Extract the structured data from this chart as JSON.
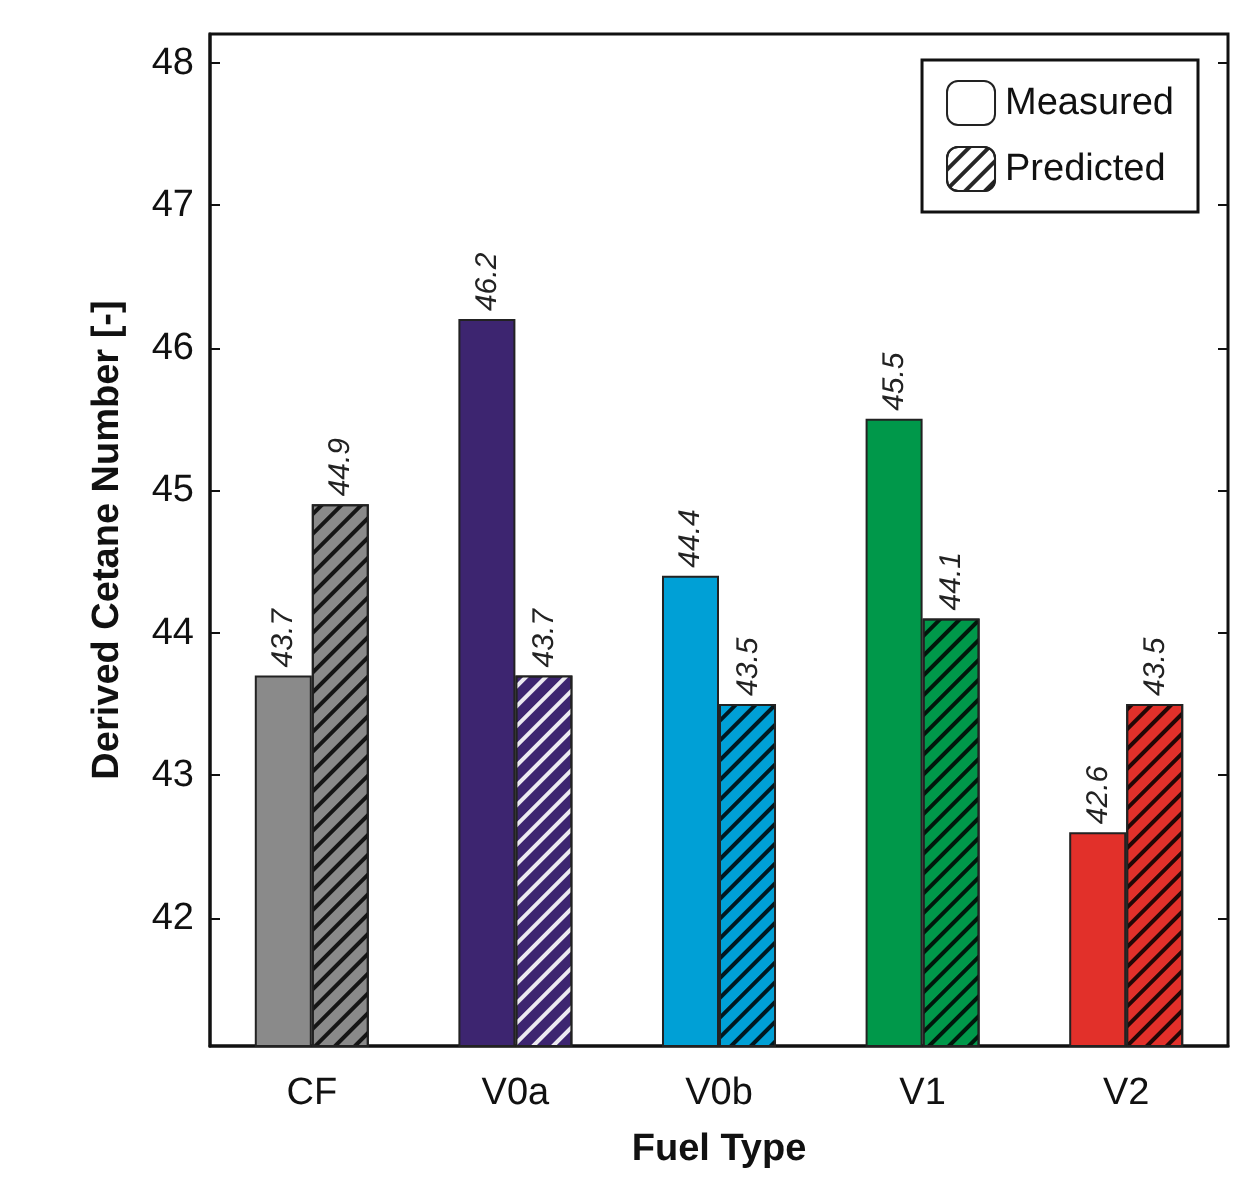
{
  "chart_data": {
    "type": "bar",
    "xlabel": "Fuel Type",
    "ylabel": "Derived Cetane Number [-]",
    "categories": [
      "CF",
      "V0a",
      "V0b",
      "V1",
      "V2"
    ],
    "series": [
      {
        "name": "Measured",
        "colors": [
          "#8a8a8a",
          "#3d2570",
          "#00a0d6",
          "#00984a",
          "#e2302a"
        ],
        "values": [
          43.7,
          46.2,
          44.4,
          45.5,
          42.6
        ]
      },
      {
        "name": "Predicted",
        "colors": [
          "#8a8a8a",
          "#3d2570",
          "#00a0d6",
          "#00984a",
          "#e2302a"
        ],
        "values": [
          44.9,
          43.7,
          43.5,
          44.1,
          43.5
        ]
      }
    ],
    "ylim": [
      41.1,
      48.2
    ],
    "yticks": [
      42,
      43,
      44,
      45,
      46,
      47,
      48
    ],
    "data_labels": true,
    "grid": false,
    "legend": "top right"
  }
}
